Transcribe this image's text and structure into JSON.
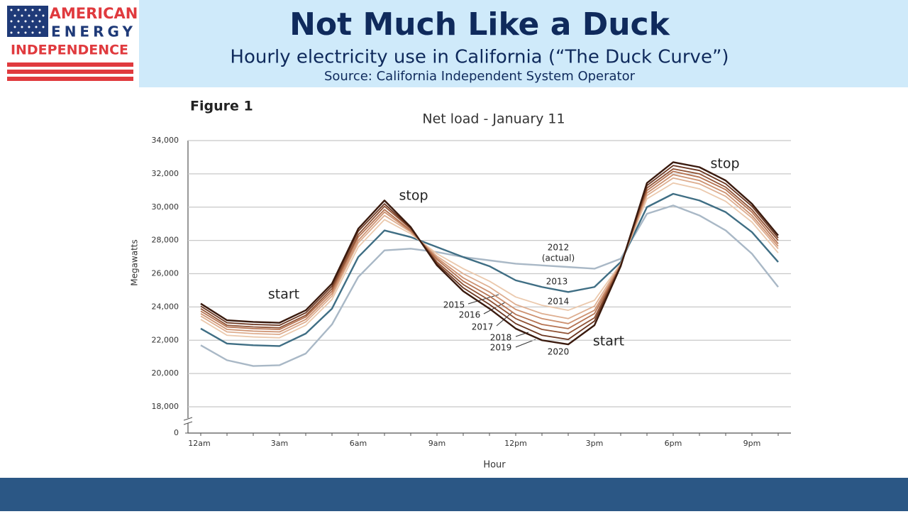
{
  "logo": {
    "lines": [
      "AMERICAN",
      "ENERGY",
      "INDEPENDENCE"
    ]
  },
  "header": {
    "title": "Not Much Like a Duck",
    "subtitle": "Hourly electricity use in California (“The Duck Curve”)",
    "source": "Source: California Independent System Operator"
  },
  "chart_data": {
    "type": "line",
    "figure_label": "Figure 1",
    "title": "Net load - January 11",
    "ylabel": "Megawatts",
    "xlabel": "Hour",
    "categories": [
      "12am",
      null,
      null,
      "3am",
      null,
      null,
      "6am",
      null,
      null,
      "9am",
      null,
      null,
      "12pm",
      null,
      null,
      "3pm",
      null,
      null,
      "6pm",
      null,
      null,
      "9pm",
      null
    ],
    "ylim": [
      0,
      34000
    ],
    "axis_break": [
      0,
      18000
    ],
    "yticks": [
      0,
      {
        "value": 18000,
        "label": "18,000"
      },
      {
        "value": 20000,
        "label": "20,000"
      },
      {
        "value": 22000,
        "label": "22,000"
      },
      {
        "value": 24000,
        "label": "24,000"
      },
      {
        "value": 26000,
        "label": "26,000"
      },
      {
        "value": 28000,
        "label": "28,000"
      },
      {
        "value": 30000,
        "label": "30,000"
      },
      {
        "value": 32000,
        "label": "32,000"
      },
      {
        "value": 34000,
        "label": "34,000"
      }
    ],
    "grid": true,
    "series": [
      {
        "name": "2012",
        "color": "#a9b8c6",
        "values": [
          21700,
          20800,
          20450,
          20500,
          21200,
          22950,
          25800,
          27400,
          27500,
          27300,
          27000,
          26800,
          26600,
          26500,
          26400,
          26300,
          26900,
          29600,
          30100,
          29500,
          28600,
          27200,
          25200
        ]
      },
      {
        "name": "2013",
        "color": "#3f6e84",
        "values": [
          22700,
          21800,
          21700,
          21650,
          22400,
          23900,
          27000,
          28600,
          28200,
          27600,
          27000,
          26450,
          25600,
          25200,
          24900,
          25200,
          26700,
          30000,
          30800,
          30400,
          29700,
          28500,
          26700
        ]
      },
      {
        "name": "2014",
        "color": "#ebc9ad",
        "values": [
          23250,
          22300,
          22200,
          22150,
          22900,
          24450,
          27600,
          29250,
          28400,
          27200,
          26300,
          25550,
          24600,
          24100,
          23800,
          24400,
          26600,
          30500,
          31450,
          31100,
          30350,
          29100,
          27250
        ]
      },
      {
        "name": "2015",
        "color": "#deae90",
        "values": [
          23450,
          22500,
          22400,
          22350,
          23100,
          24650,
          27850,
          29500,
          28500,
          27050,
          26000,
          25200,
          24150,
          23600,
          23300,
          24050,
          26600,
          30700,
          31750,
          31400,
          30650,
          29350,
          27500
        ]
      },
      {
        "name": "2016",
        "color": "#cd9170",
        "values": [
          23600,
          22650,
          22550,
          22500,
          23250,
          24800,
          28000,
          29700,
          28550,
          26950,
          25750,
          24900,
          23850,
          23300,
          23000,
          23800,
          26550,
          30850,
          31950,
          31600,
          30850,
          29500,
          27650
        ]
      },
      {
        "name": "2017",
        "color": "#b57352",
        "values": [
          23750,
          22800,
          22700,
          22650,
          23400,
          24950,
          28200,
          29850,
          28600,
          26850,
          25550,
          24650,
          23550,
          22950,
          22700,
          23600,
          26500,
          31000,
          32150,
          31800,
          31050,
          29700,
          27800
        ]
      },
      {
        "name": "2018",
        "color": "#905234",
        "values": [
          23900,
          22900,
          22800,
          22750,
          23500,
          25100,
          28350,
          30050,
          28700,
          26700,
          25350,
          24400,
          23300,
          22650,
          22400,
          23350,
          26500,
          31150,
          32300,
          32000,
          31200,
          29850,
          28000
        ]
      },
      {
        "name": "2019",
        "color": "#6b3620",
        "values": [
          24050,
          23050,
          22950,
          22900,
          23650,
          25250,
          28550,
          30200,
          28750,
          26600,
          25150,
          24150,
          23000,
          22300,
          22050,
          23150,
          26450,
          31300,
          32500,
          32200,
          31400,
          30050,
          28150
        ]
      },
      {
        "name": "2020",
        "color": "#3a1a0e",
        "values": [
          24200,
          23200,
          23100,
          23050,
          23800,
          25400,
          28700,
          30400,
          28800,
          26500,
          24950,
          23900,
          22700,
          22000,
          21750,
          22900,
          26450,
          31450,
          32700,
          32400,
          31600,
          30200,
          28300
        ]
      }
    ],
    "annotations": [
      {
        "text": "start"
      },
      {
        "text": "stop"
      },
      {
        "text": "stop"
      },
      {
        "text": "start"
      },
      {
        "text": "(actual)"
      }
    ]
  }
}
